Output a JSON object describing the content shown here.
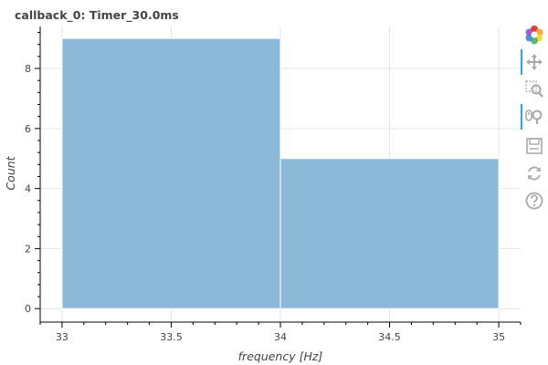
{
  "chart_data": {
    "type": "bar",
    "title": "callback_0: Timer_30.0ms",
    "xlabel": "frequency [Hz]",
    "ylabel": "Count",
    "bins": [
      {
        "left": 33,
        "right": 34,
        "count": 9
      },
      {
        "left": 34,
        "right": 35,
        "count": 5
      }
    ],
    "xlim": [
      32.9,
      35.1
    ],
    "ylim": [
      -0.45,
      9.4
    ],
    "xticks": [
      33,
      33.5,
      34,
      34.5,
      35
    ],
    "xtick_labels": [
      "33",
      "33.5",
      "34",
      "34.5",
      "35"
    ],
    "yticks": [
      0,
      2,
      4,
      6,
      8
    ],
    "ytick_labels": [
      "0",
      "2",
      "4",
      "6",
      "8"
    ],
    "grid": true,
    "legend": "none",
    "bar_color": "#8db9d9",
    "bar_stroke": "#6e9ec4"
  },
  "toolbar": {
    "tools": [
      {
        "name": "bokeh-logo-icon",
        "active": false
      },
      {
        "name": "pan-icon",
        "active": true
      },
      {
        "name": "box-zoom-icon",
        "active": false
      },
      {
        "name": "wheel-zoom-icon",
        "active": true
      },
      {
        "name": "save-icon",
        "active": false
      },
      {
        "name": "reset-icon",
        "active": false
      },
      {
        "name": "help-icon",
        "active": false
      }
    ]
  }
}
